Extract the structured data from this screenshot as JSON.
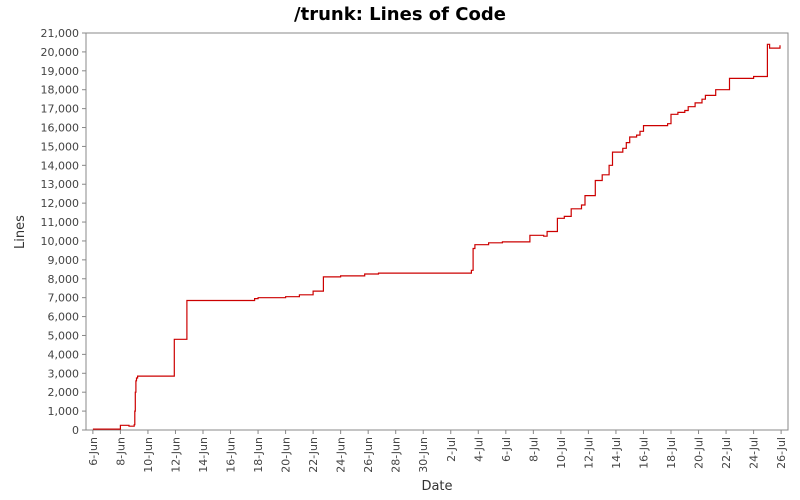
{
  "chart_data": {
    "type": "line",
    "title": "/trunk: Lines of Code",
    "xlabel": "Date",
    "ylabel": "Lines",
    "ylim": [
      0,
      21000
    ],
    "yticks": [
      0,
      1000,
      2000,
      3000,
      4000,
      5000,
      6000,
      7000,
      8000,
      9000,
      10000,
      11000,
      12000,
      13000,
      14000,
      15000,
      16000,
      17000,
      18000,
      19000,
      20000,
      21000
    ],
    "ytick_labels": [
      "0",
      "1,000",
      "2,000",
      "3,000",
      "4,000",
      "5,000",
      "6,000",
      "7,000",
      "8,000",
      "9,000",
      "10,000",
      "11,000",
      "12,000",
      "13,000",
      "14,000",
      "15,000",
      "16,000",
      "17,000",
      "18,000",
      "19,000",
      "20,000",
      "21,000"
    ],
    "xticks": [
      "6-Jun",
      "8-Jun",
      "10-Jun",
      "12-Jun",
      "14-Jun",
      "16-Jun",
      "18-Jun",
      "20-Jun",
      "22-Jun",
      "24-Jun",
      "26-Jun",
      "28-Jun",
      "30-Jun",
      "2-Jul",
      "4-Jul",
      "6-Jul",
      "8-Jul",
      "10-Jul",
      "12-Jul",
      "14-Jul",
      "16-Jul",
      "18-Jul",
      "20-Jul",
      "22-Jul",
      "24-Jul",
      "26-Jul"
    ],
    "xlim": [
      "2005-06-05T12:00",
      "2005-07-26T12:00"
    ],
    "step": true,
    "grid": false,
    "series": [
      {
        "color": "#cc0000",
        "points": [
          [
            "2005-06-06T00:00",
            50
          ],
          [
            "2005-06-08T00:00",
            80
          ],
          [
            "2005-06-08T00:00",
            250
          ],
          [
            "2005-06-08T15:00",
            200
          ],
          [
            "2005-06-09T00:00",
            280
          ],
          [
            "2005-06-09T01:00",
            1000
          ],
          [
            "2005-06-09T02:00",
            2000
          ],
          [
            "2005-06-09T03:00",
            2600
          ],
          [
            "2005-06-09T04:00",
            2750
          ],
          [
            "2005-06-09T06:00",
            2850
          ],
          [
            "2005-06-11T22:00",
            4800
          ],
          [
            "2005-06-12T20:00",
            6850
          ],
          [
            "2005-06-17T18:00",
            6950
          ],
          [
            "2005-06-18T00:00",
            7000
          ],
          [
            "2005-06-20T00:00",
            7050
          ],
          [
            "2005-06-21T00:00",
            7150
          ],
          [
            "2005-06-22T00:00",
            7350
          ],
          [
            "2005-06-22T18:00",
            8100
          ],
          [
            "2005-06-24T00:00",
            8150
          ],
          [
            "2005-06-25T18:00",
            8250
          ],
          [
            "2005-06-26T18:00",
            8300
          ],
          [
            "2005-07-03T12:00",
            8450
          ],
          [
            "2005-07-03T15:00",
            9600
          ],
          [
            "2005-07-03T18:00",
            9800
          ],
          [
            "2005-07-04T18:00",
            9900
          ],
          [
            "2005-07-05T18:00",
            9950
          ],
          [
            "2005-07-07T18:00",
            10300
          ],
          [
            "2005-07-08T18:00",
            10250
          ],
          [
            "2005-07-09T00:00",
            10500
          ],
          [
            "2005-07-09T18:00",
            11200
          ],
          [
            "2005-07-10T06:00",
            11300
          ],
          [
            "2005-07-10T18:00",
            11700
          ],
          [
            "2005-07-11T12:00",
            11900
          ],
          [
            "2005-07-11T18:00",
            12400
          ],
          [
            "2005-07-12T12:00",
            13200
          ],
          [
            "2005-07-13T00:00",
            13500
          ],
          [
            "2005-07-13T12:00",
            14000
          ],
          [
            "2005-07-13T18:00",
            14700
          ],
          [
            "2005-07-14T12:00",
            14900
          ],
          [
            "2005-07-14T18:00",
            15200
          ],
          [
            "2005-07-15T00:00",
            15500
          ],
          [
            "2005-07-15T12:00",
            15600
          ],
          [
            "2005-07-15T18:00",
            15800
          ],
          [
            "2005-07-16T00:00",
            16100
          ],
          [
            "2005-07-17T18:00",
            16200
          ],
          [
            "2005-07-18T00:00",
            16700
          ],
          [
            "2005-07-18T12:00",
            16800
          ],
          [
            "2005-07-19T00:00",
            16900
          ],
          [
            "2005-07-19T06:00",
            17100
          ],
          [
            "2005-07-19T18:00",
            17300
          ],
          [
            "2005-07-20T06:00",
            17500
          ],
          [
            "2005-07-20T12:00",
            17700
          ],
          [
            "2005-07-21T06:00",
            18000
          ],
          [
            "2005-07-22T06:00",
            18600
          ],
          [
            "2005-07-24T00:00",
            18700
          ],
          [
            "2005-07-25T00:00",
            20400
          ],
          [
            "2005-07-25T04:00",
            20200
          ],
          [
            "2005-07-25T22:00",
            20350
          ]
        ],
        "end": "2005-07-25T22:00"
      }
    ]
  }
}
